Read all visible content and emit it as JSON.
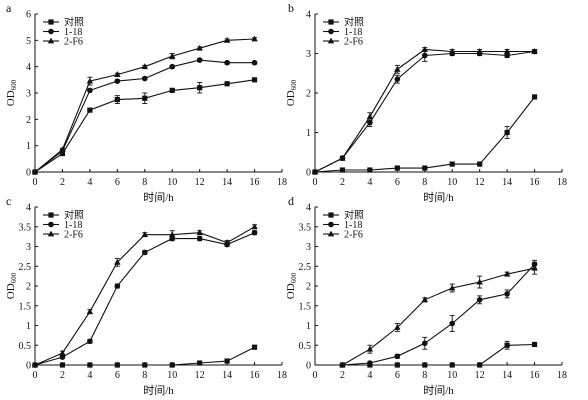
{
  "chart_data": [
    {
      "panel": "a",
      "type": "line",
      "xlabel": "时间/h",
      "ylabel": "OD600",
      "xlim": [
        0,
        18
      ],
      "ylim": [
        0,
        6
      ],
      "xticks": [
        0,
        2,
        4,
        6,
        8,
        10,
        12,
        14,
        16,
        18
      ],
      "yticks": [
        0,
        1,
        2,
        3,
        4,
        5,
        6
      ],
      "legend_position": "top-left",
      "x": [
        0,
        2,
        4,
        6,
        8,
        10,
        12,
        14,
        16
      ],
      "series": [
        {
          "name": "对照",
          "marker": "square",
          "values": [
            0,
            0.7,
            2.35,
            2.75,
            2.8,
            3.1,
            3.2,
            3.35,
            3.5
          ],
          "errors": [
            0,
            0.05,
            0.05,
            0.15,
            0.2,
            0.05,
            0.2,
            0.05,
            0.05
          ]
        },
        {
          "name": "1-18",
          "marker": "circle",
          "values": [
            0,
            0.8,
            3.1,
            3.45,
            3.55,
            4.0,
            4.25,
            4.15,
            4.15
          ],
          "errors": [
            0,
            0.05,
            0.05,
            0.05,
            0.05,
            0.05,
            0.05,
            0.05,
            0.05
          ]
        },
        {
          "name": "2-F6",
          "marker": "triangle",
          "values": [
            0,
            0.85,
            3.45,
            3.7,
            4.0,
            4.4,
            4.7,
            5.0,
            5.05
          ],
          "errors": [
            0,
            0.05,
            0.15,
            0.05,
            0.05,
            0.1,
            0.05,
            0.05,
            0.05
          ]
        }
      ]
    },
    {
      "panel": "b",
      "type": "line",
      "xlabel": "时间/h",
      "ylabel": "OD600",
      "xlim": [
        0,
        18
      ],
      "ylim": [
        0,
        4
      ],
      "xticks": [
        0,
        2,
        4,
        6,
        8,
        10,
        12,
        14,
        16,
        18
      ],
      "yticks": [
        0,
        1,
        2,
        3,
        4
      ],
      "legend_position": "top-left",
      "x": [
        0,
        2,
        4,
        6,
        8,
        10,
        12,
        14,
        16
      ],
      "series": [
        {
          "name": "对照",
          "marker": "square",
          "values": [
            0,
            0.05,
            0.05,
            0.1,
            0.1,
            0.2,
            0.2,
            1.0,
            1.9
          ],
          "errors": [
            0,
            0,
            0,
            0,
            0,
            0,
            0,
            0.15,
            0.05
          ]
        },
        {
          "name": "1-18",
          "marker": "circle",
          "values": [
            0,
            0.35,
            1.25,
            2.35,
            2.95,
            3.0,
            3.0,
            2.95,
            3.05
          ],
          "errors": [
            0,
            0.05,
            0.1,
            0.1,
            0.15,
            0.05,
            0.05,
            0.05,
            0.05
          ]
        },
        {
          "name": "2-F6",
          "marker": "triangle",
          "values": [
            0,
            0.35,
            1.4,
            2.6,
            3.1,
            3.05,
            3.05,
            3.05,
            3.05
          ],
          "errors": [
            0,
            0.05,
            0.1,
            0.1,
            0.05,
            0.05,
            0.05,
            0.05,
            0.05
          ]
        }
      ]
    },
    {
      "panel": "c",
      "type": "line",
      "xlabel": "时间/h",
      "ylabel": "OD600",
      "xlim": [
        0,
        18
      ],
      "ylim": [
        0,
        4
      ],
      "xticks": [
        0,
        2,
        4,
        6,
        8,
        10,
        12,
        14,
        16,
        18
      ],
      "yticks": [
        0,
        0.5,
        1,
        1.5,
        2,
        2.5,
        3,
        3.5,
        4
      ],
      "legend_position": "top-left",
      "x": [
        0,
        2,
        4,
        6,
        8,
        10,
        12,
        14,
        16
      ],
      "series": [
        {
          "name": "对照",
          "marker": "square",
          "values": [
            0,
            0,
            0,
            0,
            0,
            0,
            0.05,
            0.1,
            0.45
          ],
          "errors": [
            0,
            0,
            0,
            0,
            0,
            0,
            0,
            0,
            0
          ]
        },
        {
          "name": "1-18",
          "marker": "circle",
          "values": [
            0,
            0.2,
            0.6,
            2.0,
            2.85,
            3.2,
            3.2,
            3.05,
            3.35
          ],
          "errors": [
            0,
            0,
            0.05,
            0.05,
            0.05,
            0.05,
            0.05,
            0.05,
            0.05
          ]
        },
        {
          "name": "2-F6",
          "marker": "triangle",
          "values": [
            0,
            0.3,
            1.35,
            2.6,
            3.3,
            3.3,
            3.35,
            3.1,
            3.5
          ],
          "errors": [
            0,
            0.05,
            0.05,
            0.1,
            0.05,
            0.1,
            0.05,
            0.05,
            0.05
          ]
        }
      ]
    },
    {
      "panel": "d",
      "type": "line",
      "xlabel": "时间/h",
      "ylabel": "OD600",
      "xlim": [
        0,
        18
      ],
      "ylim": [
        0,
        4
      ],
      "xticks": [
        0,
        2,
        4,
        6,
        8,
        10,
        12,
        14,
        16,
        18
      ],
      "yticks": [
        0,
        0.5,
        1,
        1.5,
        2,
        2.5,
        3,
        3.5,
        4
      ],
      "legend_position": "top-left",
      "x": [
        2,
        4,
        6,
        8,
        10,
        12,
        14,
        16
      ],
      "series": [
        {
          "name": "对照",
          "marker": "square",
          "values": [
            0,
            0,
            0,
            0,
            0,
            0,
            0.5,
            0.52
          ],
          "errors": [
            0,
            0,
            0,
            0,
            0,
            0,
            0.1,
            0
          ]
        },
        {
          "name": "1-18",
          "marker": "circle",
          "values": [
            0,
            0.05,
            0.22,
            0.55,
            1.05,
            1.65,
            1.8,
            2.55
          ],
          "errors": [
            0,
            0,
            0.05,
            0.15,
            0.2,
            0.1,
            0.1,
            0.1
          ]
        },
        {
          "name": "2-F6",
          "marker": "triangle",
          "values": [
            0,
            0.4,
            0.95,
            1.65,
            1.95,
            2.1,
            2.3,
            2.45
          ],
          "errors": [
            0,
            0.1,
            0.1,
            0.05,
            0.1,
            0.15,
            0.05,
            0.15
          ]
        }
      ]
    }
  ]
}
